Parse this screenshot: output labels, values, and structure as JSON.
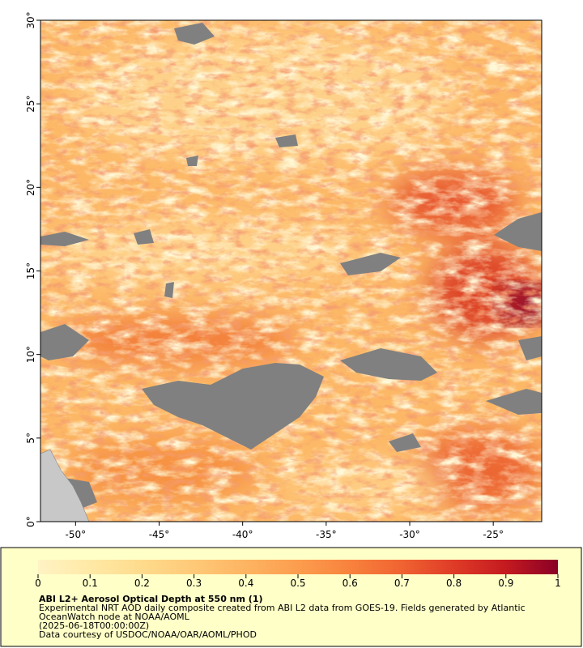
{
  "map": {
    "xlim": [
      -52.1,
      -22.1
    ],
    "ylim": [
      0,
      30
    ],
    "xticks": [
      {
        "value": -50,
        "label": "-50°"
      },
      {
        "value": -45,
        "label": "-45°"
      },
      {
        "value": -40,
        "label": "-40°"
      },
      {
        "value": -35,
        "label": "-35°"
      },
      {
        "value": -30,
        "label": "-30°"
      },
      {
        "value": -25,
        "label": "-25°"
      }
    ],
    "yticks": [
      {
        "value": 0,
        "label": "0°"
      },
      {
        "value": 5,
        "label": "5°"
      },
      {
        "value": 10,
        "label": "10°"
      },
      {
        "value": 15,
        "label": "15°"
      },
      {
        "value": 20,
        "label": "20°"
      },
      {
        "value": 25,
        "label": "25°"
      },
      {
        "value": 30,
        "label": "30°"
      }
    ]
  },
  "colorbar": {
    "range": [
      0,
      1
    ],
    "ticks": [
      0,
      0.1,
      0.2,
      0.3,
      0.4,
      0.5,
      0.6,
      0.7,
      0.8,
      0.9,
      1
    ],
    "colors": [
      "#fff3c4",
      "#ffe9a6",
      "#fedb8c",
      "#fec978",
      "#fdb462",
      "#fc9d4e",
      "#f8823d",
      "#f06331",
      "#df3b27",
      "#c41a20",
      "#8a0026"
    ]
  },
  "caption": {
    "title": "ABI L2+ Aerosol Optical Depth at 550 nm (1)",
    "lines": [
      "Experimental NRT AOD daily composite created from ABI L2 data from GOES-19. Fields generated by Atlantic",
      "OceanWatch node at NOAA/AOML",
      "(2025-06-18T00:00:00Z)",
      "Data courtesy of USDOC/NOAA/OAR/AOML/PHOD"
    ]
  }
}
